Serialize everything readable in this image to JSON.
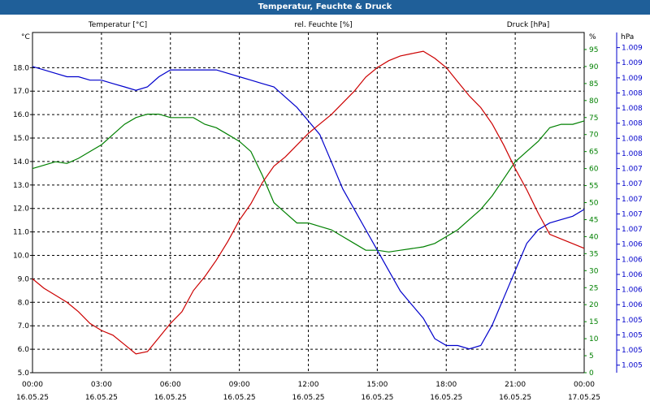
{
  "window": {
    "title": "Temperatur, Feuchte & Druck"
  },
  "chart_data": {
    "type": "line",
    "title": "Temperatur, Feuchte & Druck",
    "x_tick_times": [
      "00:00",
      "03:00",
      "06:00",
      "09:00",
      "12:00",
      "15:00",
      "18:00",
      "21:00",
      "00:00"
    ],
    "x_tick_dates": [
      "16.05.25",
      "16.05.25",
      "16.05.25",
      "16.05.25",
      "16.05.25",
      "16.05.25",
      "16.05.25",
      "16.05.25",
      "17.05.25"
    ],
    "x_range_hours": [
      0,
      24
    ],
    "grid": true,
    "series": [
      {
        "name": "Temperatur [°C]",
        "axis": "left",
        "unit": "°C",
        "color": "#cc0000",
        "ylim": [
          5.0,
          19.5
        ],
        "tick_labels": [
          "5.0",
          "6.0",
          "7.0",
          "8.0",
          "9.0",
          "10.0",
          "11.0",
          "12.0",
          "13.0",
          "14.0",
          "15.0",
          "16.0",
          "17.0",
          "18.0"
        ],
        "x": [
          0,
          0.5,
          1,
          1.5,
          2,
          2.5,
          3,
          3.5,
          4,
          4.5,
          5,
          5.5,
          6,
          6.5,
          7,
          7.5,
          8,
          8.5,
          9,
          9.5,
          10,
          10.5,
          11,
          11.5,
          12,
          12.5,
          13,
          13.5,
          14,
          14.5,
          15,
          15.5,
          16,
          16.5,
          17,
          17.5,
          18,
          18.5,
          19,
          19.5,
          20,
          20.5,
          21,
          21.5,
          22,
          22.5,
          23,
          23.5,
          24
        ],
        "values": [
          9.0,
          8.6,
          8.3,
          8.0,
          7.6,
          7.1,
          6.8,
          6.6,
          6.2,
          5.8,
          5.9,
          6.5,
          7.1,
          7.6,
          8.5,
          9.1,
          9.8,
          10.6,
          11.5,
          12.2,
          13.1,
          13.8,
          14.2,
          14.7,
          15.2,
          15.6,
          16.0,
          16.5,
          17.0,
          17.6,
          18.0,
          18.3,
          18.5,
          18.6,
          18.7,
          18.4,
          18.0,
          17.4,
          16.8,
          16.3,
          15.6,
          14.7,
          13.7,
          12.8,
          11.8,
          10.9,
          10.7,
          10.5,
          10.3
        ]
      },
      {
        "name": "rel. Feuchte [%]",
        "axis": "right-inner",
        "unit": "%",
        "color": "#008000",
        "ylim": [
          0,
          100
        ],
        "tick_labels": [
          "0",
          "5",
          "10",
          "15",
          "20",
          "25",
          "30",
          "35",
          "40",
          "45",
          "50",
          "55",
          "60",
          "65",
          "70",
          "75",
          "80",
          "85",
          "90",
          "95"
        ],
        "x": [
          0,
          0.5,
          1,
          1.5,
          2,
          2.5,
          3,
          3.5,
          4,
          4.5,
          5,
          5.5,
          6,
          6.5,
          7,
          7.5,
          8,
          8.5,
          9,
          9.5,
          10,
          10.5,
          11,
          11.5,
          12,
          12.5,
          13,
          13.5,
          14,
          14.5,
          15,
          15.5,
          16,
          16.5,
          17,
          17.5,
          18,
          18.5,
          19,
          19.5,
          20,
          20.5,
          21,
          21.5,
          22,
          22.5,
          23,
          23.5,
          24
        ],
        "values": [
          60,
          61,
          62,
          61.5,
          63,
          65,
          67,
          70,
          73,
          75,
          76,
          76,
          75,
          75,
          75,
          73,
          72,
          70,
          68,
          65,
          58,
          50,
          47,
          44,
          44,
          43,
          42,
          40,
          38,
          36,
          36,
          35.5,
          36,
          36.5,
          37,
          38,
          40,
          42,
          45,
          48,
          52,
          57,
          62,
          65,
          68,
          72,
          73,
          73,
          74
        ]
      },
      {
        "name": "Druck [hPa]",
        "axis": "right-outer",
        "unit": "hPa",
        "color": "#0000cc",
        "ylim": [
          1004.5,
          1009.5
        ],
        "tick_labels": [
          "1.005",
          "1.005",
          "1.005",
          "1.005",
          "1.006",
          "1.006",
          "1.006",
          "1.006",
          "1.006",
          "1.007",
          "1.007",
          "1.007",
          "1.007",
          "1.007",
          "1.008",
          "1.008",
          "1.008",
          "1.008",
          "1.008",
          "1.009",
          "1.009",
          "1.009"
        ],
        "x": [
          0,
          0.5,
          1,
          1.5,
          2,
          2.5,
          3,
          3.5,
          4,
          4.5,
          5,
          5.5,
          6,
          6.5,
          7,
          7.5,
          8,
          8.5,
          9,
          9.5,
          10,
          10.5,
          11,
          11.5,
          12,
          12.5,
          13,
          13.5,
          14,
          14.5,
          15,
          15.5,
          16,
          16.5,
          17,
          17.5,
          18,
          18.5,
          19,
          19.5,
          20,
          20.5,
          21,
          21.5,
          22,
          22.5,
          23,
          23.5,
          24
        ],
        "values": [
          1009.0,
          1008.95,
          1008.9,
          1008.85,
          1008.85,
          1008.8,
          1008.8,
          1008.75,
          1008.7,
          1008.65,
          1008.7,
          1008.85,
          1008.95,
          1008.95,
          1008.95,
          1008.95,
          1008.95,
          1008.9,
          1008.85,
          1008.8,
          1008.75,
          1008.7,
          1008.55,
          1008.4,
          1008.2,
          1008.0,
          1007.6,
          1007.2,
          1006.9,
          1006.6,
          1006.3,
          1006.0,
          1005.7,
          1005.5,
          1005.3,
          1005.0,
          1004.9,
          1004.9,
          1004.85,
          1004.9,
          1005.2,
          1005.6,
          1006.0,
          1006.4,
          1006.6,
          1006.7,
          1006.75,
          1006.8,
          1006.9
        ]
      }
    ]
  }
}
